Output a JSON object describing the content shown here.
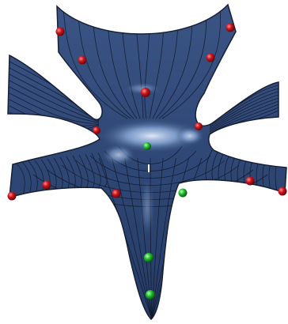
{
  "scene": {
    "background_color": "#ffffff",
    "surface_color": "#2f4775",
    "surface_highlight_color": "#8fb0e0",
    "edge_color": "#151f36",
    "isoline_color": "#10182a",
    "control_points": [
      {
        "id": "red-1",
        "color": "#c8141c"
      },
      {
        "id": "red-2",
        "color": "#c8141c"
      },
      {
        "id": "red-3",
        "color": "#c8141c"
      },
      {
        "id": "red-4",
        "color": "#c8141c"
      },
      {
        "id": "red-5",
        "color": "#c8141c"
      },
      {
        "id": "red-6",
        "color": "#c8141c"
      },
      {
        "id": "red-7",
        "color": "#c8141c"
      },
      {
        "id": "red-8",
        "color": "#c8141c"
      },
      {
        "id": "red-9",
        "color": "#c8141c"
      },
      {
        "id": "red-10",
        "color": "#c8141c"
      },
      {
        "id": "red-11",
        "color": "#c8141c"
      },
      {
        "id": "red-12",
        "color": "#c8141c"
      },
      {
        "id": "green-1",
        "color": "#1fbf2a"
      },
      {
        "id": "green-2",
        "color": "#1fbf2a"
      },
      {
        "id": "green-3",
        "color": "#1fbf2a"
      },
      {
        "id": "green-4",
        "color": "#1fbf2a"
      }
    ]
  }
}
